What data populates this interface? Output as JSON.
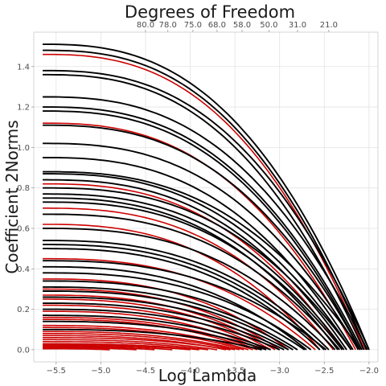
{
  "chart_data": {
    "type": "line",
    "title": "Degrees of Freedom",
    "xlabel": "Log Lambda",
    "ylabel": "Coefficient 2Norms",
    "xlim": [
      -5.75,
      -1.9
    ],
    "ylim": [
      -0.06,
      1.57
    ],
    "x_ticks": [
      -5.5,
      -5.0,
      -4.5,
      -4.0,
      -3.5,
      -3.0,
      -2.5,
      -2.0
    ],
    "x_tick_labels": [
      "−5.5",
      "−5.0",
      "−4.5",
      "−4.0",
      "−3.5",
      "−3.0",
      "−2.5",
      "−2.0"
    ],
    "y_ticks": [
      0.0,
      0.2,
      0.4,
      0.6,
      0.8,
      1.0,
      1.2,
      1.4
    ],
    "y_tick_labels": [
      "0.0",
      "0.2",
      "0.4",
      "0.6",
      "0.8",
      "1.0",
      "1.2",
      "1.4"
    ],
    "top_axis": {
      "ticks": [
        -4.5,
        -4.25,
        -3.97,
        -3.7,
        -3.42,
        -3.12,
        -2.8,
        -2.45
      ],
      "labels": [
        "80.0",
        "78.0",
        "75.0",
        "68.0",
        "58.0",
        "50.0",
        "31.0",
        "21.0"
      ]
    },
    "grid": true,
    "x_start": -5.65,
    "colors": {
      "selected": "#cc0000",
      "other": "#000000"
    },
    "series": [
      {
        "start": 1.51,
        "end": -2.0,
        "color": "other"
      },
      {
        "start": 1.48,
        "end": -2.03,
        "color": "other"
      },
      {
        "start": 1.46,
        "end": -2.05,
        "color": "selected"
      },
      {
        "start": 1.38,
        "end": -2.0,
        "color": "other"
      },
      {
        "start": 1.36,
        "end": -2.06,
        "color": "other"
      },
      {
        "start": 1.25,
        "end": -2.02,
        "color": "other"
      },
      {
        "start": 1.2,
        "end": -2.08,
        "color": "other"
      },
      {
        "start": 1.18,
        "end": -2.1,
        "color": "other"
      },
      {
        "start": 1.12,
        "end": -2.15,
        "color": "selected"
      },
      {
        "start": 1.11,
        "end": -2.1,
        "color": "other"
      },
      {
        "start": 1.02,
        "end": -2.12,
        "color": "other"
      },
      {
        "start": 0.95,
        "end": -2.18,
        "color": "other"
      },
      {
        "start": 0.88,
        "end": -2.1,
        "color": "other"
      },
      {
        "start": 0.87,
        "end": -2.2,
        "color": "other"
      },
      {
        "start": 0.84,
        "end": -2.25,
        "color": "other"
      },
      {
        "start": 0.82,
        "end": -2.3,
        "color": "selected"
      },
      {
        "start": 0.8,
        "end": -2.2,
        "color": "other"
      },
      {
        "start": 0.77,
        "end": -2.28,
        "color": "other"
      },
      {
        "start": 0.75,
        "end": -2.35,
        "color": "other"
      },
      {
        "start": 0.73,
        "end": -2.3,
        "color": "other"
      },
      {
        "start": 0.7,
        "end": -2.4,
        "color": "selected"
      },
      {
        "start": 0.67,
        "end": -2.33,
        "color": "other"
      },
      {
        "start": 0.62,
        "end": -2.55,
        "color": "selected"
      },
      {
        "start": 0.6,
        "end": -2.38,
        "color": "other"
      },
      {
        "start": 0.54,
        "end": -2.45,
        "color": "other"
      },
      {
        "start": 0.52,
        "end": -2.5,
        "color": "other"
      },
      {
        "start": 0.5,
        "end": -2.55,
        "color": "other"
      },
      {
        "start": 0.45,
        "end": -2.6,
        "color": "selected"
      },
      {
        "start": 0.44,
        "end": -2.48,
        "color": "other"
      },
      {
        "start": 0.41,
        "end": -2.7,
        "color": "other"
      },
      {
        "start": 0.38,
        "end": -2.65,
        "color": "other"
      },
      {
        "start": 0.35,
        "end": -2.9,
        "color": "selected"
      },
      {
        "start": 0.34,
        "end": -2.72,
        "color": "other"
      },
      {
        "start": 0.31,
        "end": -2.8,
        "color": "other"
      },
      {
        "start": 0.3,
        "end": -3.0,
        "color": "selected"
      },
      {
        "start": 0.29,
        "end": -2.85,
        "color": "other"
      },
      {
        "start": 0.27,
        "end": -3.05,
        "color": "selected"
      },
      {
        "start": 0.26,
        "end": -2.9,
        "color": "other"
      },
      {
        "start": 0.25,
        "end": -3.1,
        "color": "selected"
      },
      {
        "start": 0.23,
        "end": -2.95,
        "color": "other"
      },
      {
        "start": 0.22,
        "end": -3.15,
        "color": "selected"
      },
      {
        "start": 0.2,
        "end": -3.0,
        "color": "other"
      },
      {
        "start": 0.19,
        "end": -3.2,
        "color": "selected"
      },
      {
        "start": 0.17,
        "end": -3.1,
        "color": "other"
      },
      {
        "start": 0.16,
        "end": -3.25,
        "color": "selected"
      },
      {
        "start": 0.15,
        "end": -3.3,
        "color": "selected"
      },
      {
        "start": 0.14,
        "end": -3.15,
        "color": "other"
      },
      {
        "start": 0.12,
        "end": -3.35,
        "color": "selected"
      },
      {
        "start": 0.11,
        "end": -3.4,
        "color": "selected"
      },
      {
        "start": 0.1,
        "end": -3.2,
        "color": "other"
      },
      {
        "start": 0.09,
        "end": -3.45,
        "color": "selected"
      },
      {
        "start": 0.08,
        "end": -3.5,
        "color": "selected"
      },
      {
        "start": 0.07,
        "end": -3.6,
        "color": "selected"
      },
      {
        "start": 0.06,
        "end": -3.55,
        "color": "selected"
      },
      {
        "start": 0.05,
        "end": -3.7,
        "color": "selected"
      },
      {
        "start": 0.04,
        "end": -3.8,
        "color": "selected"
      },
      {
        "start": 0.03,
        "end": -3.9,
        "color": "selected"
      },
      {
        "start": 0.025,
        "end": -4.0,
        "color": "selected"
      },
      {
        "start": 0.02,
        "end": -4.2,
        "color": "selected"
      },
      {
        "start": 0.015,
        "end": -4.4,
        "color": "selected"
      },
      {
        "start": 0.01,
        "end": -4.6,
        "color": "selected"
      },
      {
        "start": 0.005,
        "end": -4.9,
        "color": "selected"
      }
    ]
  }
}
